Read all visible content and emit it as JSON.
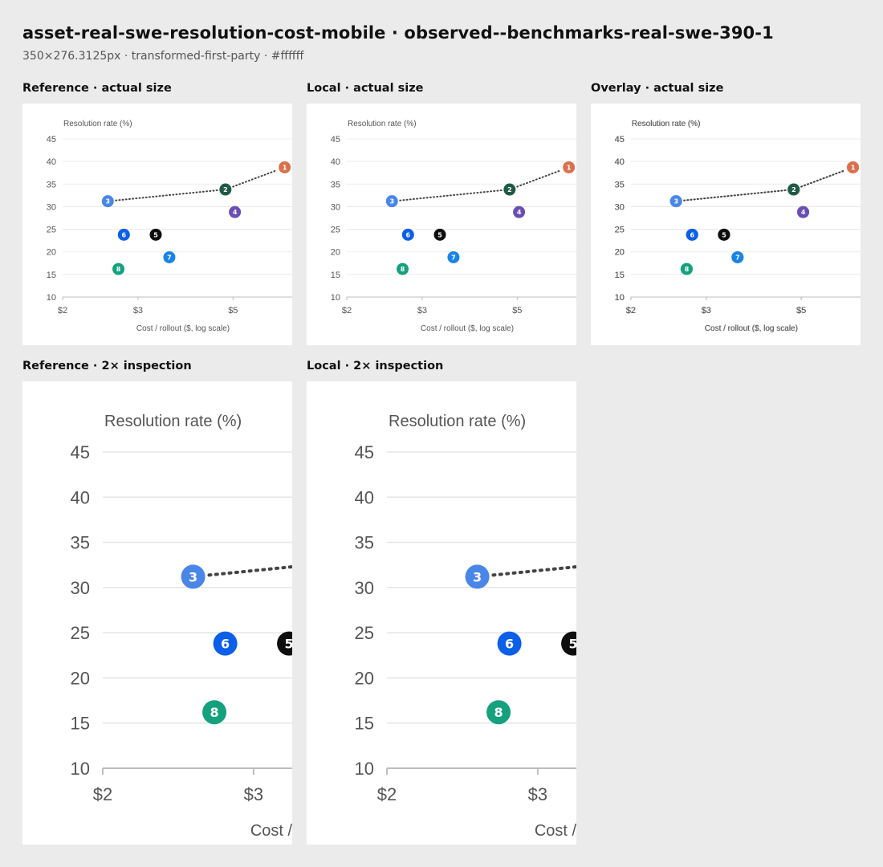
{
  "header": {
    "title": "asset-real-swe-resolution-cost-mobile · observed--benchmarks-real-swe-390-1",
    "subtitle": "350×276.3125px · transformed-first-party · #ffffff"
  },
  "panels": {
    "reference_actual": "Reference · actual size",
    "local_actual": "Local · actual size",
    "overlay_actual": "Overlay · actual size",
    "reference_2x": "Reference · 2× inspection",
    "local_2x": "Local · 2× inspection"
  },
  "chart_data": {
    "type": "scatter",
    "ylabel": "Resolution rate (%)",
    "xlabel": "Cost / rollout ($, log scale)",
    "x_scale": "log",
    "xlim": [
      2,
      7.3
    ],
    "ylim": [
      10,
      45
    ],
    "yticks": [
      10,
      15,
      20,
      25,
      30,
      35,
      40,
      45
    ],
    "yticks_labels": [
      "10",
      "15",
      "20",
      "25",
      "30",
      "35",
      "40",
      "45"
    ],
    "xticks": [
      2,
      3,
      5
    ],
    "xticks_labels": [
      "$2",
      "$3",
      "$5"
    ],
    "grid": true,
    "frontier": [
      3,
      2,
      1
    ],
    "points": [
      {
        "label": "1",
        "x": 6.6,
        "y": 38.7,
        "color": "#d9714e"
      },
      {
        "label": "2",
        "x": 4.8,
        "y": 33.8,
        "color": "#1f5a47"
      },
      {
        "label": "3",
        "x": 2.55,
        "y": 31.2,
        "color": "#4a86e8"
      },
      {
        "label": "4",
        "x": 5.05,
        "y": 28.8,
        "color": "#6a4fb3"
      },
      {
        "label": "5",
        "x": 3.3,
        "y": 23.8,
        "color": "#0e0e0e"
      },
      {
        "label": "6",
        "x": 2.78,
        "y": 23.8,
        "color": "#0b5fe8"
      },
      {
        "label": "7",
        "x": 3.55,
        "y": 18.8,
        "color": "#1a84e6"
      },
      {
        "label": "8",
        "x": 2.7,
        "y": 16.2,
        "color": "#16a17e"
      }
    ]
  }
}
